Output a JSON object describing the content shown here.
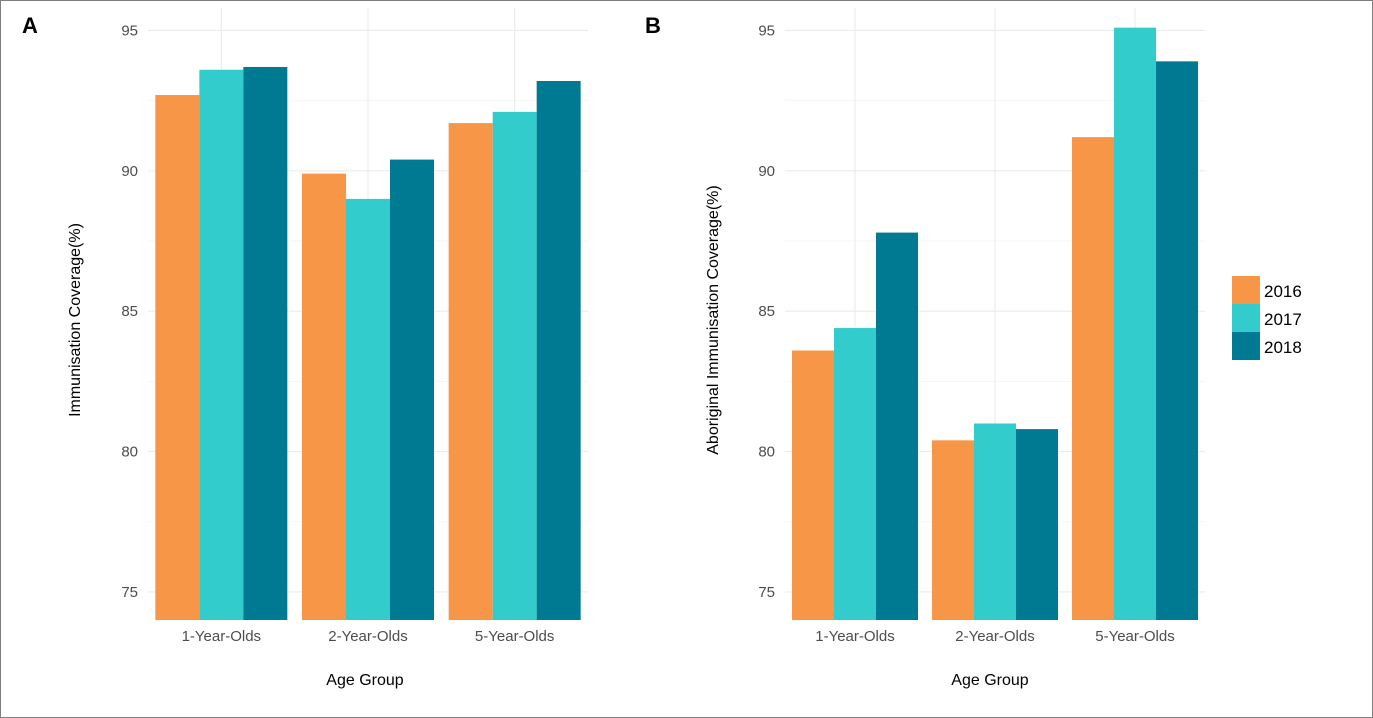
{
  "colors": {
    "2016": "#F79646",
    "2017": "#33CCCC",
    "2018": "#007A93"
  },
  "legend": {
    "items": [
      {
        "label": "2016",
        "color": "#F79646"
      },
      {
        "label": "2017",
        "color": "#33CCCC"
      },
      {
        "label": "2018",
        "color": "#007A93"
      }
    ]
  },
  "chart_data": [
    {
      "panel": "A",
      "type": "bar",
      "xlabel": "Age Group",
      "ylabel": "Immunisation Coverage(%)",
      "categories": [
        "1-Year-Olds",
        "2-Year-Olds",
        "5-Year-Olds"
      ],
      "ylim": [
        74,
        95.8
      ],
      "yticks": [
        75,
        80,
        85,
        90,
        95
      ],
      "series": [
        {
          "name": "2016",
          "values": [
            92.7,
            89.9,
            91.7
          ]
        },
        {
          "name": "2017",
          "values": [
            93.6,
            89.0,
            92.1
          ]
        },
        {
          "name": "2018",
          "values": [
            93.7,
            90.4,
            93.2
          ]
        }
      ],
      "grid": true
    },
    {
      "panel": "B",
      "type": "bar",
      "xlabel": "Age Group",
      "ylabel": "Aboriginal Immunisation Coverage(%)",
      "categories": [
        "1-Year-Olds",
        "2-Year-Olds",
        "5-Year-Olds"
      ],
      "ylim": [
        74,
        95.8
      ],
      "yticks": [
        75,
        80,
        85,
        90,
        95
      ],
      "series": [
        {
          "name": "2016",
          "values": [
            83.6,
            80.4,
            91.2
          ]
        },
        {
          "name": "2017",
          "values": [
            84.4,
            81.0,
            95.1
          ]
        },
        {
          "name": "2018",
          "values": [
            87.8,
            80.8,
            93.9
          ]
        }
      ],
      "grid": true,
      "legend": "right"
    }
  ]
}
